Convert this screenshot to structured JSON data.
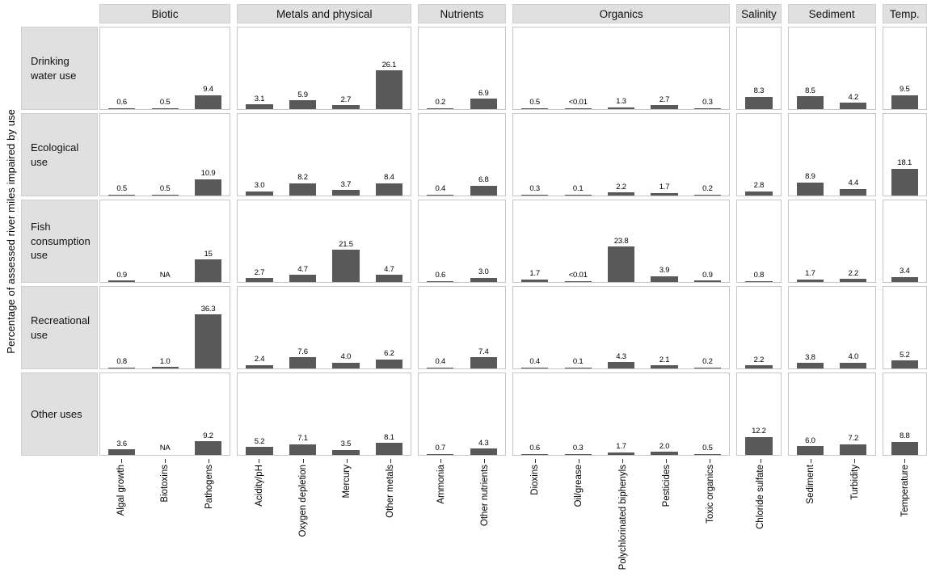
{
  "chart_data": {
    "type": "bar",
    "title": "",
    "ylabel": "Percentage of assessed river miles impaired by use",
    "unit": "percent",
    "ylim_implied": [
      0,
      40
    ],
    "legend": "none",
    "grid": "off",
    "layout": "small-multiples (5 use rows x 7 cause groups)",
    "colors": {
      "bar": "#595959",
      "header_bg": "#e0e0e0",
      "panel_border": "#c6c6c6",
      "text": "#111111"
    },
    "groups": [
      {
        "label": "Biotic",
        "categories": [
          "Algal growth",
          "Biotoxins",
          "Pathogens"
        ]
      },
      {
        "label": "Metals and physical",
        "categories": [
          "Acidity/pH",
          "Oxygen depletion",
          "Mercury",
          "Other metals"
        ]
      },
      {
        "label": "Nutrients",
        "categories": [
          "Ammonia",
          "Other nutrients"
        ]
      },
      {
        "label": "Organics",
        "categories": [
          "Dioxins",
          "Oil/grease",
          "Polychlorinated biphenyls",
          "Pesticides",
          "Toxic organics"
        ]
      },
      {
        "label": "Salinity",
        "categories": [
          "Chloride sulfate"
        ]
      },
      {
        "label": "Sediment",
        "categories": [
          "Sediment",
          "Turbidity"
        ]
      },
      {
        "label": "Temp.",
        "categories": [
          "Temperature"
        ]
      }
    ],
    "rows": [
      {
        "label": "Drinking water use",
        "values": [
          [
            "0.6",
            "0.5",
            "9.4"
          ],
          [
            "3.1",
            "5.9",
            "2.7",
            "26.1"
          ],
          [
            "0.2",
            "6.9"
          ],
          [
            "0.5",
            "<0.01",
            "1.3",
            "2.7",
            "0.3"
          ],
          [
            "8.3"
          ],
          [
            "8.5",
            "4.2"
          ],
          [
            "9.5"
          ]
        ]
      },
      {
        "label": "Ecological use",
        "values": [
          [
            "0.5",
            "0.5",
            "10.9"
          ],
          [
            "3.0",
            "8.2",
            "3.7",
            "8.4"
          ],
          [
            "0.4",
            "6.8"
          ],
          [
            "0.3",
            "0.1",
            "2.2",
            "1.7",
            "0.2"
          ],
          [
            "2.8"
          ],
          [
            "8.9",
            "4.4"
          ],
          [
            "18.1"
          ]
        ]
      },
      {
        "label": "Fish consumption use",
        "values": [
          [
            "0.9",
            "NA",
            "15"
          ],
          [
            "2.7",
            "4.7",
            "21.5",
            "4.7"
          ],
          [
            "0.6",
            "3.0"
          ],
          [
            "1.7",
            "<0.01",
            "23.8",
            "3.9",
            "0.9"
          ],
          [
            "0.8"
          ],
          [
            "1.7",
            "2.2"
          ],
          [
            "3.4"
          ]
        ]
      },
      {
        "label": "Recreational use",
        "values": [
          [
            "0.8",
            "1.0",
            "36.3"
          ],
          [
            "2.4",
            "7.6",
            "4.0",
            "6.2"
          ],
          [
            "0.4",
            "7.4"
          ],
          [
            "0.4",
            "0.1",
            "4.3",
            "2.1",
            "0.2"
          ],
          [
            "2.2"
          ],
          [
            "3.8",
            "4.0"
          ],
          [
            "5.2"
          ]
        ]
      },
      {
        "label": "Other uses",
        "values": [
          [
            "3.6",
            "NA",
            "9.2"
          ],
          [
            "5.2",
            "7.1",
            "3.5",
            "8.1"
          ],
          [
            "0.7",
            "4.3"
          ],
          [
            "0.6",
            "0.3",
            "1.7",
            "2.0",
            "0.5"
          ],
          [
            "12.2"
          ],
          [
            "6.0",
            "7.2"
          ],
          [
            "8.8"
          ]
        ]
      }
    ]
  }
}
